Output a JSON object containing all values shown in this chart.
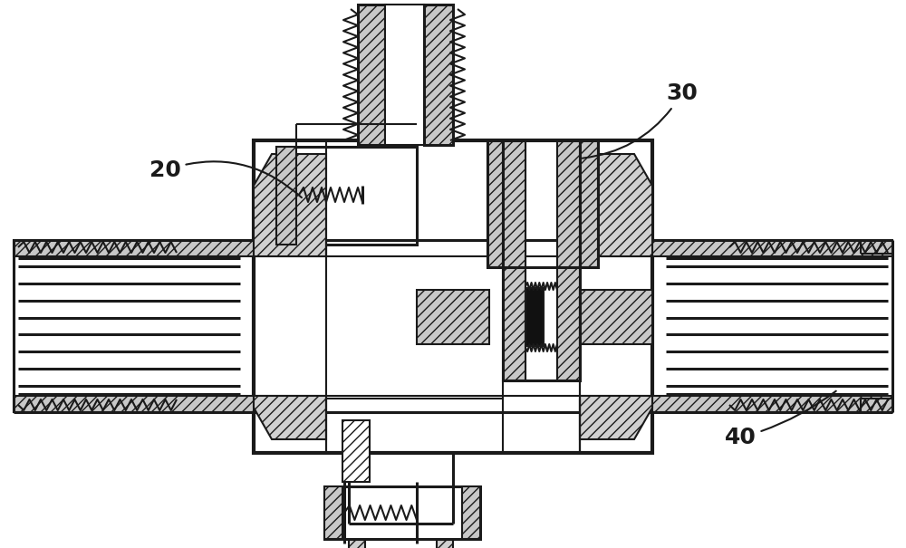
{
  "bg_color": "#ffffff",
  "lc": "#1a1a1a",
  "lw": 1.5,
  "lw2": 2.2,
  "lw3": 3.0,
  "fs": 18,
  "label_20": "20",
  "label_30": "30",
  "label_40": "40"
}
